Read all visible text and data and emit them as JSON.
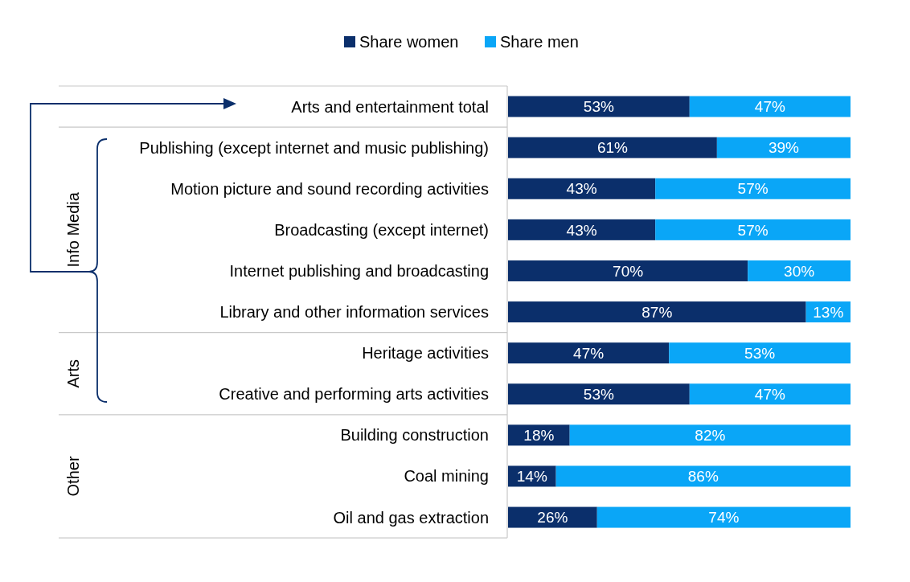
{
  "chart_data": {
    "type": "bar",
    "orientation": "horizontal",
    "stacked": true,
    "legend": "top",
    "data_labels": true,
    "categories": [
      "Arts and entertainment total",
      "Publishing (except internet and music publishing)",
      "Motion picture and sound recording activities",
      "Broadcasting (except internet)",
      "Internet publishing and broadcasting",
      "Library and other information services",
      "Heritage activities",
      "Creative and performing arts activities",
      "Building construction",
      "Coal mining",
      "Oil and gas extraction"
    ],
    "series": [
      {
        "name": "Share women",
        "color": "#0b2f6b",
        "values": [
          53,
          61,
          43,
          43,
          70,
          87,
          47,
          53,
          18,
          14,
          26
        ],
        "value_labels": [
          "53%",
          "61%",
          "43%",
          "43%",
          "70%",
          "87%",
          "47%",
          "53%",
          "18%",
          "14%",
          "26%"
        ]
      },
      {
        "name": "Share men",
        "color": "#0aa6f7",
        "values": [
          47,
          39,
          57,
          57,
          30,
          13,
          53,
          47,
          82,
          86,
          74
        ],
        "value_labels": [
          "47%",
          "39%",
          "57%",
          "57%",
          "30%",
          "13%",
          "53%",
          "47%",
          "82%",
          "86%",
          "74%"
        ]
      }
    ],
    "annotations": [
      "Info Media",
      "Arts",
      "Other"
    ]
  }
}
